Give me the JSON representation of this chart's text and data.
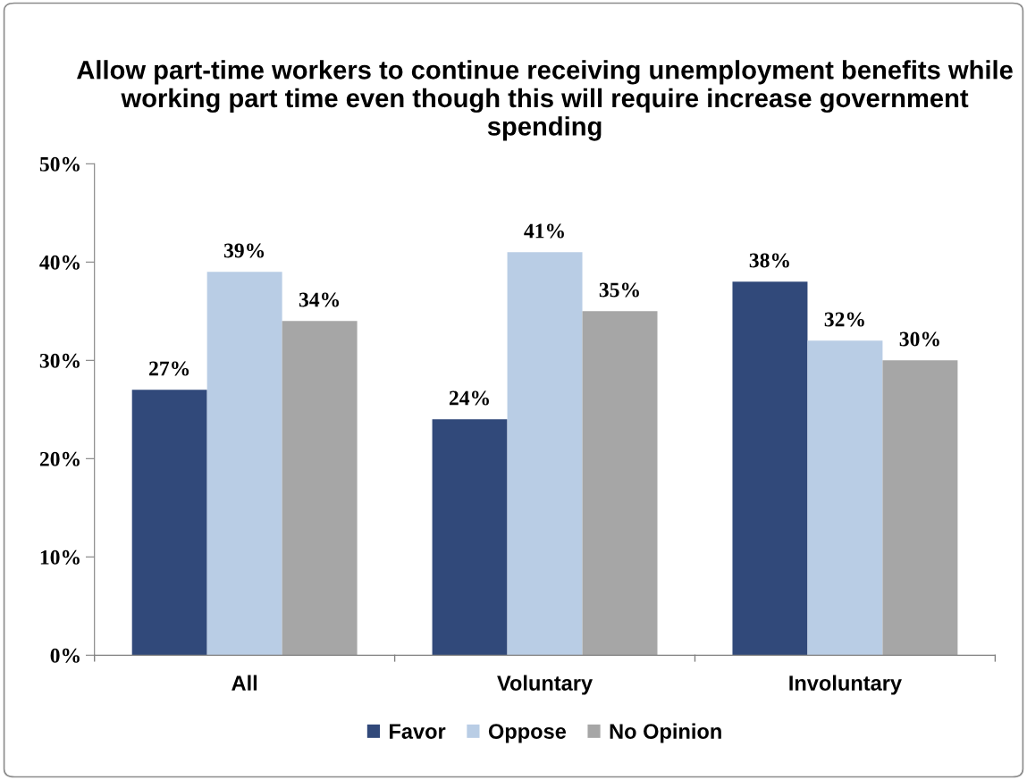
{
  "chart_data": {
    "type": "bar",
    "title": "Allow part-time workers to continue receiving unemployment benefits while working part time even though this will require increase government spending",
    "categories": [
      "All",
      "Voluntary",
      "Involuntary"
    ],
    "series": [
      {
        "name": "Favor",
        "color": "#31497a",
        "values": [
          27,
          24,
          38
        ],
        "value_labels": [
          "27%",
          "24%",
          "38%"
        ]
      },
      {
        "name": "Oppose",
        "color": "#b9cde5",
        "values": [
          39,
          41,
          32
        ],
        "value_labels": [
          "39%",
          "41%",
          "32%"
        ]
      },
      {
        "name": "No Opinion",
        "color": "#a6a6a6",
        "values": [
          34,
          35,
          30
        ],
        "value_labels": [
          "34%",
          "35%",
          "30%"
        ]
      }
    ],
    "ylim": [
      0,
      50
    ],
    "yticks": [
      {
        "value": 0,
        "label": "0%"
      },
      {
        "value": 10,
        "label": "10%"
      },
      {
        "value": 20,
        "label": "20%"
      },
      {
        "value": 30,
        "label": "30%"
      },
      {
        "value": 40,
        "label": "40%"
      },
      {
        "value": 50,
        "label": "50%"
      }
    ],
    "grid": false,
    "legend": "bottom"
  }
}
